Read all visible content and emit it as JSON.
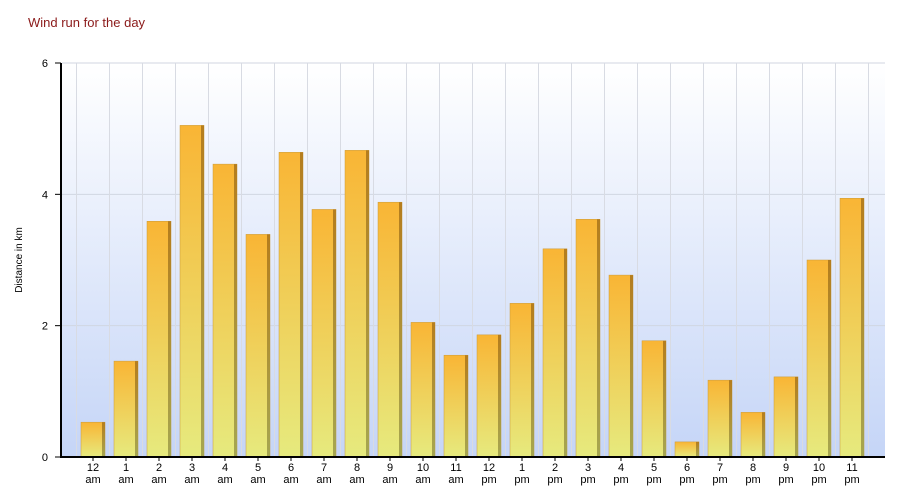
{
  "chart_data": {
    "type": "bar",
    "title": "Wind run for the day",
    "y_label": "Distance in km",
    "categories": [
      "12 am",
      "1 am",
      "2 am",
      "3 am",
      "4 am",
      "5 am",
      "6 am",
      "7 am",
      "8 am",
      "9 am",
      "10 am",
      "11 am",
      "12 pm",
      "1 pm",
      "2 pm",
      "3 pm",
      "4 pm",
      "5 pm",
      "6 pm",
      "7 pm",
      "8 pm",
      "9 pm",
      "10 pm",
      "11 pm"
    ],
    "values": [
      0.53,
      1.46,
      3.59,
      5.05,
      4.46,
      3.39,
      4.64,
      3.77,
      4.67,
      3.88,
      2.05,
      1.55,
      1.86,
      2.34,
      3.17,
      3.62,
      2.77,
      1.77,
      0.23,
      1.17,
      0.68,
      1.22,
      3.0,
      3.94
    ],
    "color": "#f5b73a",
    "ylim": [
      0,
      6
    ],
    "yticks": [
      0,
      2,
      4,
      6
    ],
    "grid": true
  }
}
